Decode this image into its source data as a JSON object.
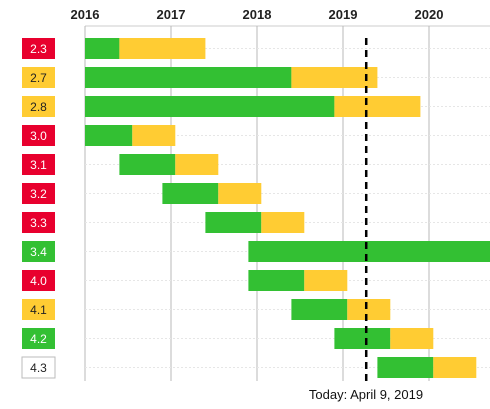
{
  "chart_data": {
    "type": "bar",
    "subtype": "timeline-gantt",
    "x_axis": {
      "ticks": [
        "2016",
        "2017",
        "2018",
        "2019",
        "2020"
      ],
      "range": [
        2015.82,
        2020.72
      ],
      "position": "top",
      "grid": true
    },
    "today": {
      "label": "Today: April 9, 2019",
      "value": 2019.27
    },
    "legend": "none",
    "colors": {
      "active": "#33c033",
      "security": "#ffcc33",
      "eol": "#e8002e",
      "today_line": "#000000",
      "grid": "#b8b8b8"
    },
    "versions": [
      {
        "label": "2.3",
        "status": "eol",
        "active": [
          2016.0,
          2016.4
        ],
        "security": [
          2016.4,
          2017.4
        ]
      },
      {
        "label": "2.7",
        "status": "security",
        "active": [
          2016.0,
          2018.4
        ],
        "security": [
          2018.4,
          2019.4
        ]
      },
      {
        "label": "2.8",
        "status": "security",
        "active": [
          2016.0,
          2018.9
        ],
        "security": [
          2018.9,
          2019.9
        ]
      },
      {
        "label": "3.0",
        "status": "eol",
        "active": [
          2016.0,
          2016.55
        ],
        "security": [
          2016.55,
          2017.05
        ]
      },
      {
        "label": "3.1",
        "status": "eol",
        "active": [
          2016.4,
          2017.05
        ],
        "security": [
          2017.05,
          2017.55
        ]
      },
      {
        "label": "3.2",
        "status": "eol",
        "active": [
          2016.9,
          2017.55
        ],
        "security": [
          2017.55,
          2018.05
        ]
      },
      {
        "label": "3.3",
        "status": "eol",
        "active": [
          2017.4,
          2018.05
        ],
        "security": [
          2018.05,
          2018.55
        ]
      },
      {
        "label": "3.4",
        "status": "active",
        "active": [
          2017.9,
          2020.72
        ],
        "security": null
      },
      {
        "label": "4.0",
        "status": "eol",
        "active": [
          2017.9,
          2018.55
        ],
        "security": [
          2018.55,
          2019.05
        ]
      },
      {
        "label": "4.1",
        "status": "security",
        "active": [
          2018.4,
          2019.05
        ],
        "security": [
          2019.05,
          2019.55
        ]
      },
      {
        "label": "4.2",
        "status": "active",
        "active": [
          2018.9,
          2019.55
        ],
        "security": [
          2019.55,
          2020.05
        ]
      },
      {
        "label": "4.3",
        "status": "upcoming",
        "active": [
          2019.4,
          2020.05
        ],
        "security": [
          2020.05,
          2020.55
        ]
      }
    ]
  }
}
